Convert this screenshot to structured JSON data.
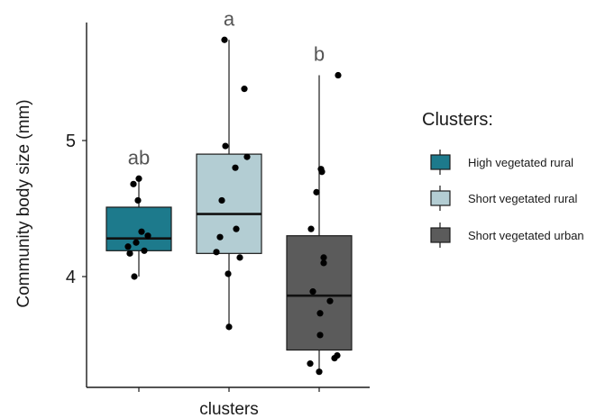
{
  "chart_data": {
    "type": "boxplot",
    "xlabel": "clusters",
    "ylabel": "Community body size (mm)",
    "ylim": [
      3.2,
      5.85
    ],
    "yticks": [
      4,
      5
    ],
    "grid": false,
    "legend_title": "Clusters:",
    "legend_position": "right",
    "groups": [
      {
        "name": "High vegetated rural",
        "color": "#1d7a8c",
        "letter": "ab",
        "stats": {
          "min": 4.0,
          "q1": 4.19,
          "median": 4.28,
          "q3": 4.51,
          "max": 4.72
        },
        "points": [
          4.72,
          4.68,
          4.56,
          4.33,
          4.3,
          4.25,
          4.22,
          4.19,
          4.17,
          4.0
        ]
      },
      {
        "name": "Short vegetated rural",
        "color": "#b3cdd3",
        "letter": "a",
        "stats": {
          "min": 3.63,
          "q1": 4.17,
          "median": 4.46,
          "q3": 4.9,
          "max": 5.74
        },
        "points": [
          5.74,
          5.38,
          4.96,
          4.88,
          4.8,
          4.56,
          4.35,
          4.29,
          4.18,
          4.14,
          4.02,
          3.63
        ]
      },
      {
        "name": "Short vegetated urban",
        "color": "#5b5b5b",
        "letter": "b",
        "stats": {
          "min": 3.3,
          "q1": 3.46,
          "median": 3.86,
          "q3": 4.3,
          "max": 5.48
        },
        "points": [
          5.48,
          4.79,
          4.77,
          4.62,
          4.35,
          4.14,
          4.1,
          3.89,
          3.82,
          3.73,
          3.57,
          3.42,
          3.4,
          3.36,
          3.3
        ]
      }
    ]
  }
}
